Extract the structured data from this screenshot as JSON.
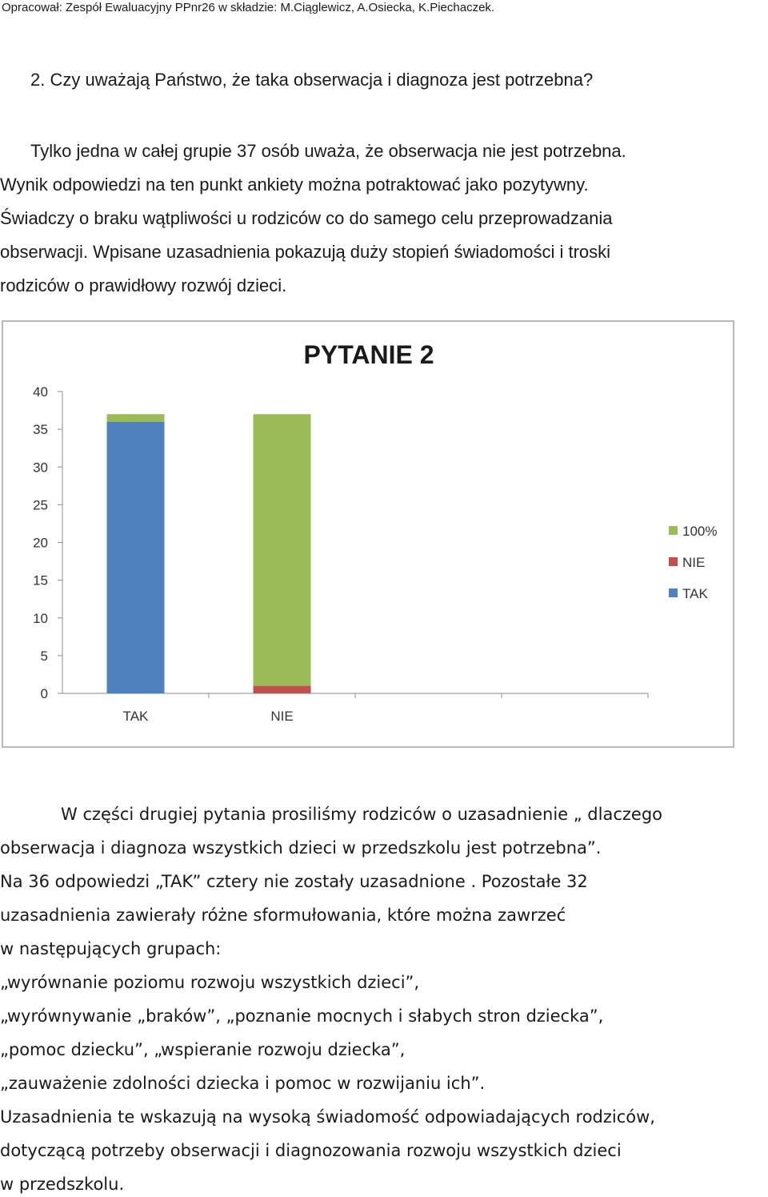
{
  "header": "Opracował: Zespół Ewaluacyjny PPnr26 w składzie: M.Ciąglewicz, A.Osiecka, K.Piechaczek.",
  "question": "2.  Czy uważają Państwo, że taka obserwacja i diagnoza jest potrzebna?",
  "paragraph1": [
    "Tylko jedna w całej grupie 37 osób uważa, że  obserwacja nie jest potrzebna.",
    "Wynik odpowiedzi na ten punkt ankiety można potraktować jako pozytywny.",
    "Świadczy o braku wątpliwości u rodziców co do samego celu przeprowadzania",
    "obserwacji. Wpisane uzasadnienia pokazują duży stopień świadomości i troski",
    "rodziców o prawidłowy rozwój dzieci."
  ],
  "chart_data": {
    "type": "bar",
    "stacked": true,
    "title": "PYTANIE 2",
    "categories": [
      "TAK",
      "NIE"
    ],
    "series": [
      {
        "name": "TAK",
        "values": [
          36,
          0
        ],
        "color": "#4f81bd"
      },
      {
        "name": "NIE",
        "values": [
          0,
          1
        ],
        "color": "#c0504d"
      },
      {
        "name": "100%",
        "values": [
          1,
          36
        ],
        "color": "#9bbb59"
      }
    ],
    "ylim": [
      0,
      40
    ],
    "yticks": [
      "0",
      "5",
      "10",
      "15",
      "20",
      "25",
      "30",
      "35",
      "40"
    ],
    "legend": "right",
    "legend_order": [
      "100%",
      "NIE",
      "TAK"
    ],
    "grid": false
  },
  "paragraph2": [
    "W części drugiej pytania prosiliśmy rodziców o uzasadnienie „ dlaczego",
    "obserwacja i diagnoza wszystkich dzieci w przedszkolu jest potrzebna”.",
    " Na 36 odpowiedzi  „TAK”  cztery nie zostały uzasadnione . Pozostałe 32",
    "uzasadnienia zawierały różne sformułowania, które można zawrzeć",
    "w następujących grupach:",
    "„wyrównanie poziomu rozwoju wszystkich dzieci”,",
    "„wyrównywanie „braków”, „poznanie mocnych i słabych stron dziecka”,",
    " „pomoc dziecku”, „wspieranie rozwoju dziecka”,",
    "„zauważenie zdolności dziecka i pomoc w rozwijaniu ich”.",
    " Uzasadnienia te wskazują na wysoką  świadomość odpowiadających rodziców,",
    "dotyczącą potrzeby obserwacji i diagnozowania rozwoju wszystkich dzieci",
    "w przedszkolu."
  ]
}
